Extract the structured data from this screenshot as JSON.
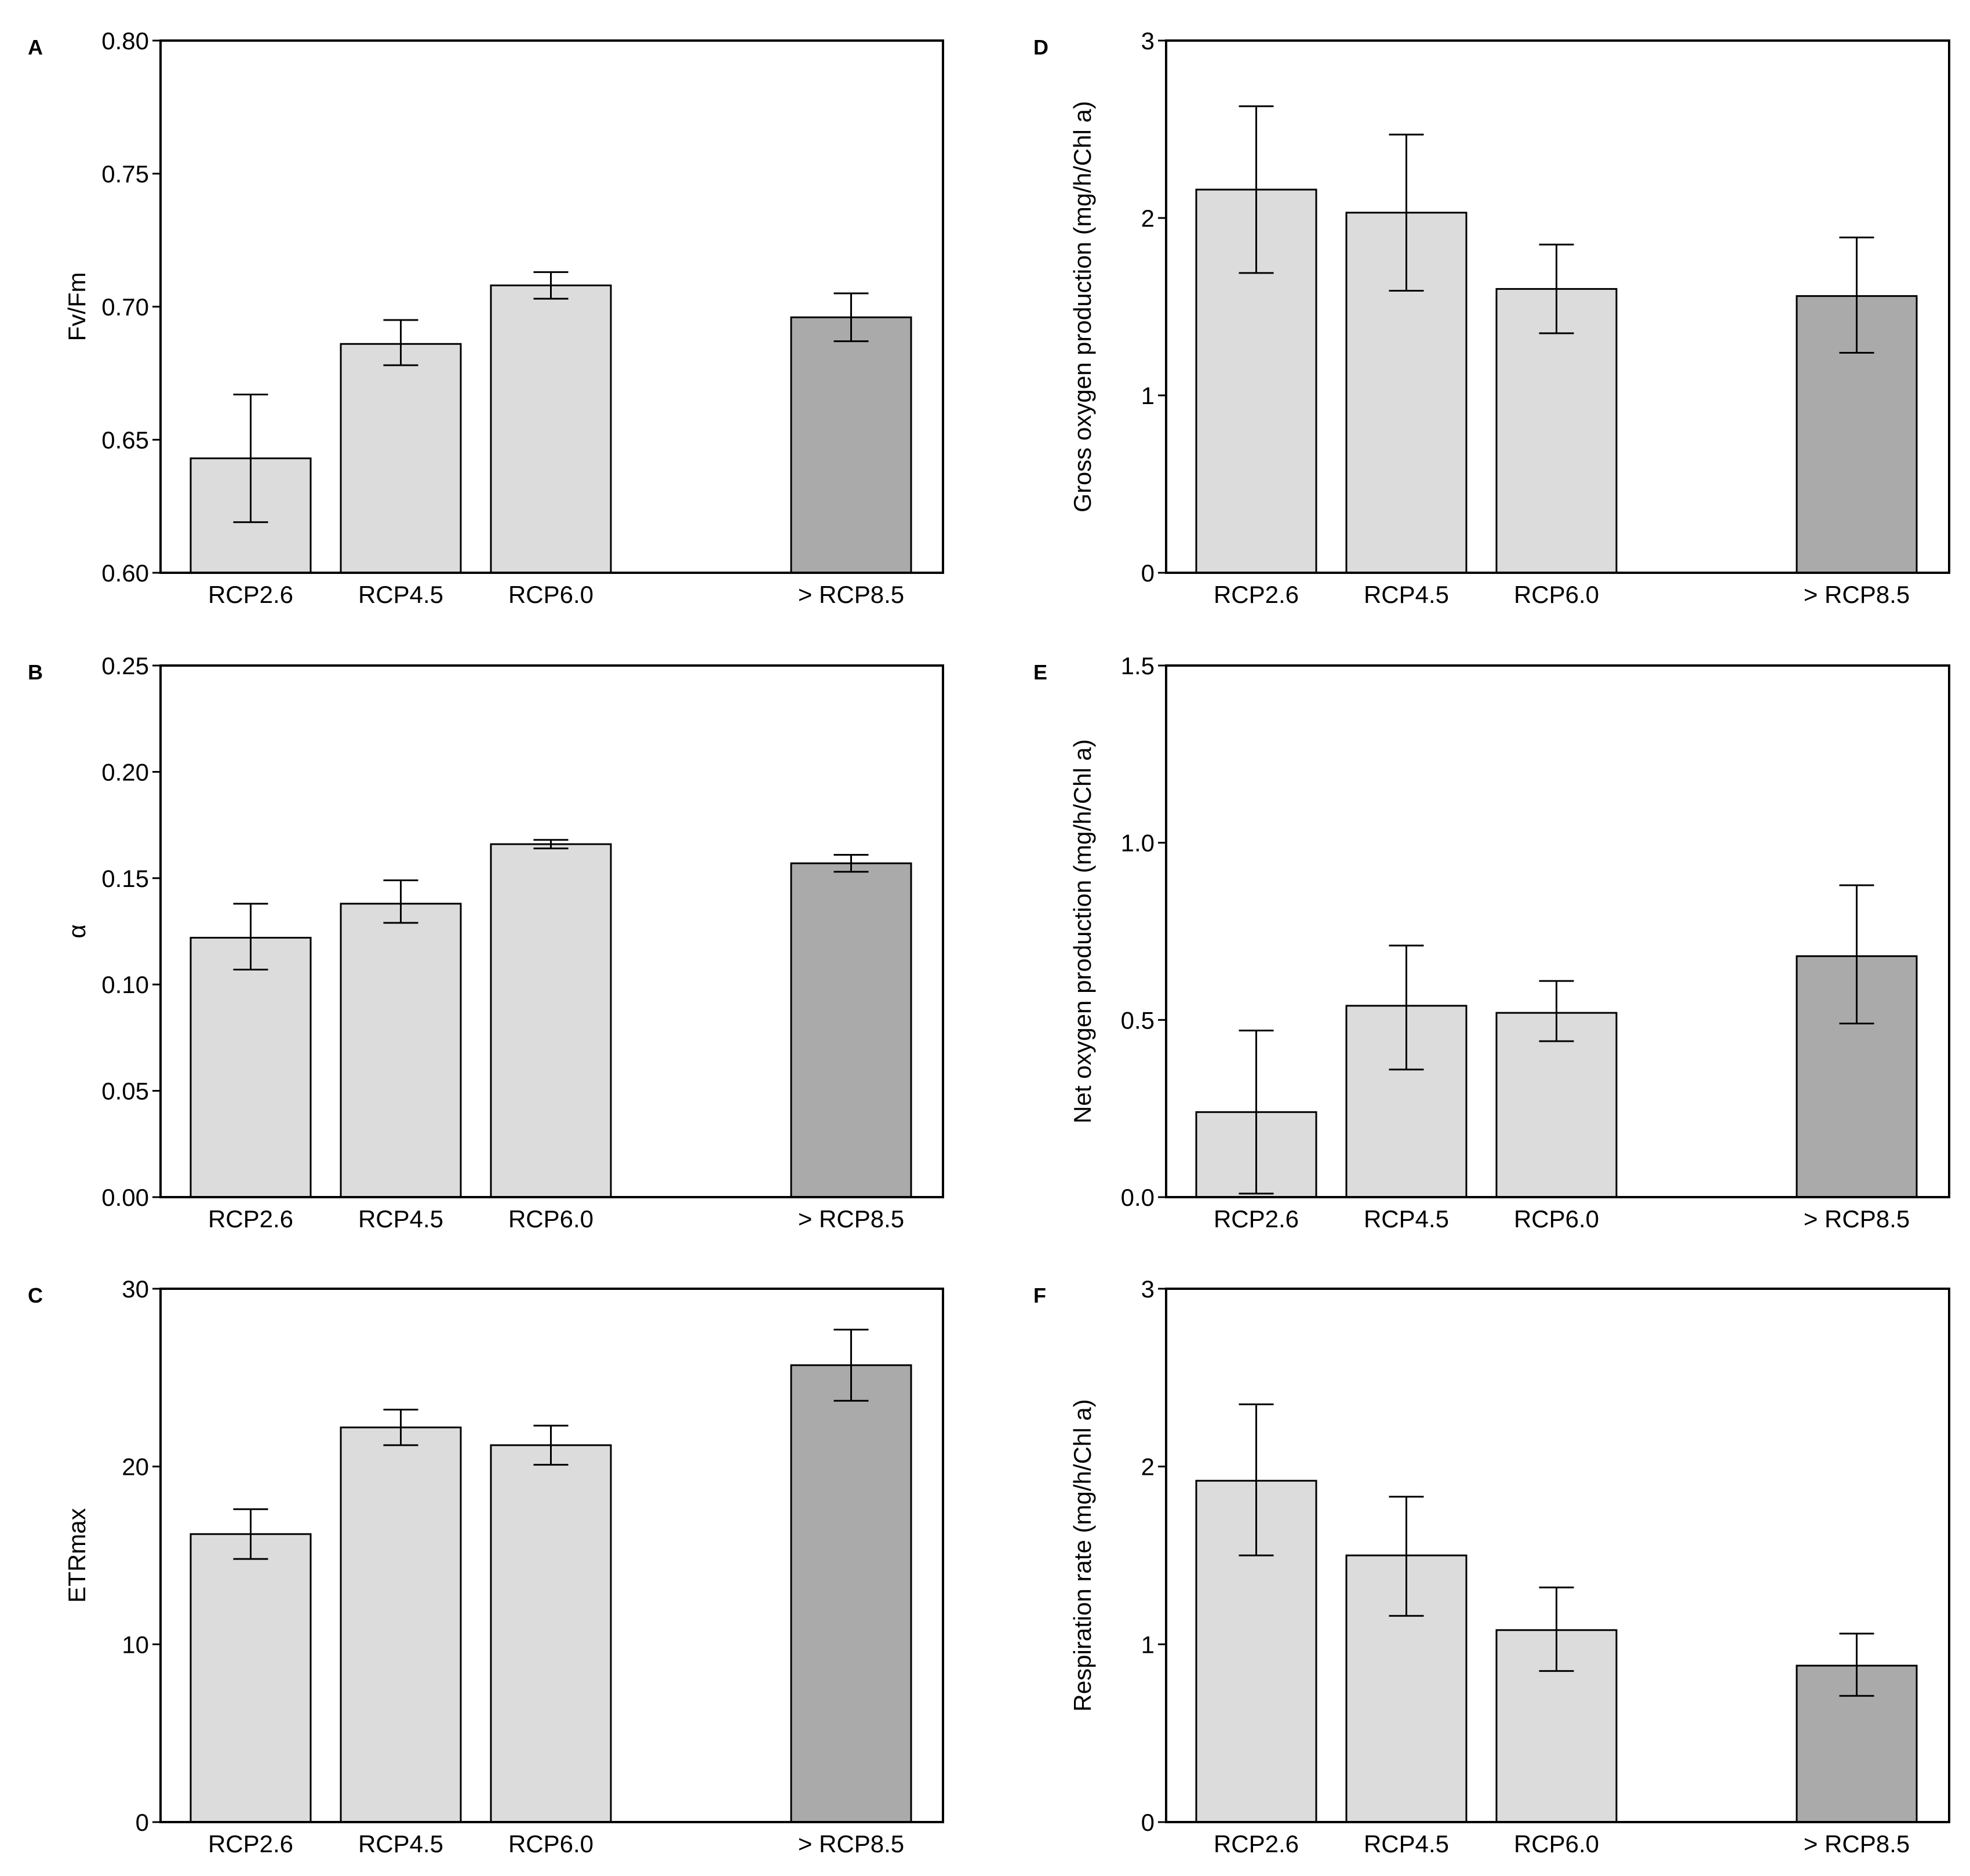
{
  "colors": {
    "bar_light": "#dcdcdc",
    "bar_dark": "#aaaaaa",
    "stroke": "#000000"
  },
  "chart_data": [
    {
      "panel": "A",
      "type": "bar",
      "ylabel": "Fv/Fm",
      "ylim": [
        0.6,
        0.8
      ],
      "yticks": [
        "0.60",
        "0.65",
        "0.70",
        "0.75",
        "0.80"
      ],
      "ytick_values": [
        0.6,
        0.65,
        0.7,
        0.75,
        0.8
      ],
      "categories": [
        "RCP2.6",
        "RCP4.5",
        "RCP6.0",
        "> RCP8.5"
      ],
      "values": [
        0.643,
        0.686,
        0.708,
        0.696
      ],
      "err_low": [
        0.619,
        0.678,
        0.703,
        0.687
      ],
      "err_high": [
        0.667,
        0.695,
        0.713,
        0.705
      ]
    },
    {
      "panel": "B",
      "type": "bar",
      "ylabel": "α",
      "ylim": [
        0.0,
        0.25
      ],
      "yticks": [
        "0.00",
        "0.05",
        "0.10",
        "0.15",
        "0.20",
        "0.25"
      ],
      "ytick_values": [
        0.0,
        0.05,
        0.1,
        0.15,
        0.2,
        0.25
      ],
      "categories": [
        "RCP2.6",
        "RCP4.5",
        "RCP6.0",
        "> RCP8.5"
      ],
      "values": [
        0.122,
        0.138,
        0.166,
        0.157
      ],
      "err_low": [
        0.107,
        0.129,
        0.164,
        0.153
      ],
      "err_high": [
        0.138,
        0.149,
        0.168,
        0.161
      ]
    },
    {
      "panel": "C",
      "type": "bar",
      "ylabel": "ETRmax",
      "ylim": [
        0,
        30
      ],
      "yticks": [
        "0",
        "10",
        "20",
        "30"
      ],
      "ytick_values": [
        0,
        10,
        20,
        30
      ],
      "categories": [
        "RCP2.6",
        "RCP4.5",
        "RCP6.0",
        "> RCP8.5"
      ],
      "values": [
        16.2,
        22.2,
        21.2,
        25.7
      ],
      "err_low": [
        14.8,
        21.2,
        20.1,
        23.7
      ],
      "err_high": [
        17.6,
        23.2,
        22.3,
        27.7
      ]
    },
    {
      "panel": "D",
      "type": "bar",
      "ylabel": "Gross oxygen production (mg/h/Chl a)",
      "ylim": [
        0,
        3
      ],
      "yticks": [
        "0",
        "1",
        "2",
        "3"
      ],
      "ytick_values": [
        0,
        1,
        2,
        3
      ],
      "categories": [
        "RCP2.6",
        "RCP4.5",
        "RCP6.0",
        "> RCP8.5"
      ],
      "values": [
        2.16,
        2.03,
        1.6,
        1.56
      ],
      "err_low": [
        1.69,
        1.59,
        1.35,
        1.24
      ],
      "err_high": [
        2.63,
        2.47,
        1.85,
        1.89
      ]
    },
    {
      "panel": "E",
      "type": "bar",
      "ylabel": "Net oxygen production (mg/h/Chl a)",
      "ylim": [
        0.0,
        1.5
      ],
      "yticks": [
        "0.0",
        "0.5",
        "1.0",
        "1.5"
      ],
      "ytick_values": [
        0.0,
        0.5,
        1.0,
        1.5
      ],
      "categories": [
        "RCP2.6",
        "RCP4.5",
        "RCP6.0",
        "> RCP8.5"
      ],
      "values": [
        0.24,
        0.54,
        0.52,
        0.68
      ],
      "err_low": [
        0.01,
        0.36,
        0.44,
        0.49
      ],
      "err_high": [
        0.47,
        0.71,
        0.61,
        0.88
      ]
    },
    {
      "panel": "F",
      "type": "bar",
      "ylabel": "Respiration rate (mg/h/Chl a)",
      "ylim": [
        0,
        3
      ],
      "yticks": [
        "0",
        "1",
        "2",
        "3"
      ],
      "ytick_values": [
        0,
        1,
        2,
        3
      ],
      "categories": [
        "RCP2.6",
        "RCP4.5",
        "RCP6.0",
        "> RCP8.5"
      ],
      "values": [
        1.92,
        1.5,
        1.08,
        0.88
      ],
      "err_low": [
        1.5,
        1.16,
        0.85,
        0.71
      ],
      "err_high": [
        2.35,
        1.83,
        1.32,
        1.06
      ]
    }
  ]
}
